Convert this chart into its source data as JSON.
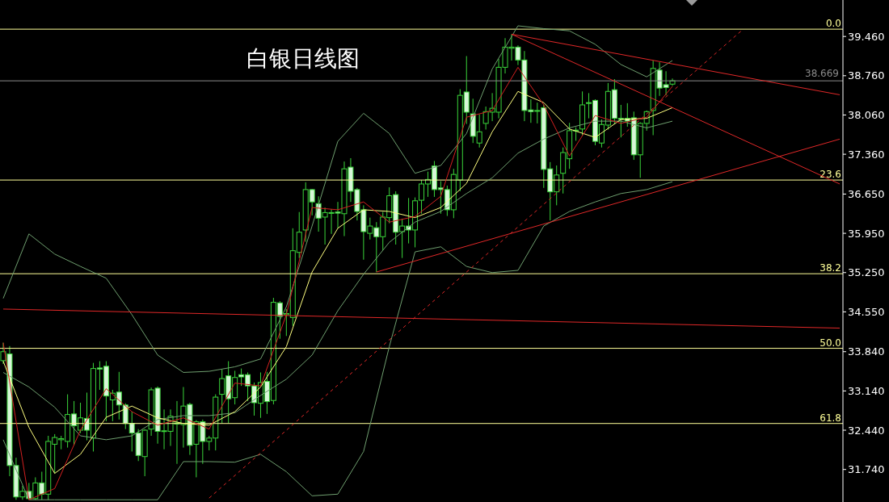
{
  "chart_data": {
    "type": "candlestick",
    "title": "白银日线图",
    "categories": [
      null,
      null,
      null,
      null,
      null,
      null,
      null,
      null,
      null,
      null,
      null,
      null,
      null,
      null,
      null,
      null,
      null,
      null,
      null,
      null,
      null,
      null,
      null,
      null,
      null,
      null,
      null,
      null,
      null,
      null,
      null,
      null,
      null,
      null,
      null,
      null,
      null,
      null,
      null,
      null,
      null,
      null,
      null,
      null,
      null,
      null,
      null,
      null,
      null,
      null,
      null,
      null,
      null,
      null,
      null,
      null,
      null,
      null,
      null,
      null,
      null,
      null,
      null,
      null,
      null,
      null,
      null,
      null,
      null,
      null,
      null,
      null,
      null,
      null,
      null,
      null,
      null,
      null,
      null,
      null,
      null,
      null,
      null,
      null,
      null,
      null,
      null,
      null,
      null,
      null,
      null,
      null,
      null,
      null,
      null,
      null,
      null,
      null,
      null,
      null,
      null,
      null,
      null,
      null,
      null,
      null,
      null,
      null,
      null,
      null,
      null,
      null,
      null,
      null,
      null,
      null,
      null,
      null,
      null,
      null,
      null,
      null,
      null,
      null,
      null,
      null,
      null,
      null,
      null,
      null,
      null
    ],
    "ylim": [
      31.16,
      40.11
    ],
    "yticks": [
      {
        "value": 31.74,
        "label": "31.740"
      },
      {
        "value": 32.44,
        "label": "32.440"
      },
      {
        "value": 33.14,
        "label": "33.140"
      },
      {
        "value": 33.84,
        "label": "33.840"
      },
      {
        "value": 34.55,
        "label": "34.550"
      },
      {
        "value": 35.25,
        "label": "35.250"
      },
      {
        "value": 35.95,
        "label": "35.950"
      },
      {
        "value": 36.65,
        "label": "36.650"
      },
      {
        "value": 37.36,
        "label": "37.360"
      },
      {
        "value": 38.06,
        "label": "38.060"
      },
      {
        "value": 38.76,
        "label": "38.760"
      },
      {
        "value": 39.46,
        "label": "39.460"
      }
    ],
    "tick_labels": "y",
    "annotations": [
      {
        "text": "0.0",
        "y": 39.59
      },
      {
        "text": "23.6",
        "y": 36.9
      },
      {
        "text": "38.2",
        "y": 35.23
      },
      {
        "text": "50.0",
        "y": 33.9
      },
      {
        "text": "61.8",
        "y": 32.56
      }
    ],
    "ref_lines": [
      {
        "axis": "y",
        "value": 39.59,
        "color": "#ffff99"
      },
      {
        "axis": "y",
        "value": 36.9,
        "color": "#ffff99"
      },
      {
        "axis": "y",
        "value": 35.23,
        "color": "#ffff99"
      },
      {
        "axis": "y",
        "value": 33.9,
        "color": "#ffff99"
      },
      {
        "axis": "y",
        "value": 32.56,
        "color": "#ffff99"
      },
      {
        "axis": "y",
        "value": 38.669,
        "label": "38.669",
        "color": "#8a8a8a"
      }
    ],
    "series": [
      {
        "type": "line",
        "color": "#6f9f6f",
        "values": [
          34.79,
          null,
          null,
          null,
          35.94,
          null,
          null,
          null,
          35.58,
          null,
          null,
          null,
          35.36,
          null,
          null,
          null,
          35.15,
          null,
          null,
          null,
          34.5,
          null,
          null,
          null,
          33.78,
          null,
          null,
          null,
          33.47,
          null,
          null,
          null,
          33.49,
          null,
          null,
          null,
          33.57,
          null,
          null,
          null,
          33.71,
          null,
          null,
          null,
          34.64,
          null,
          null,
          null,
          36.08,
          null,
          null,
          null,
          37.59,
          null,
          null,
          null,
          38.09,
          null,
          null,
          null,
          37.73,
          null,
          null,
          null,
          37.02,
          null,
          null,
          null,
          37.16,
          null,
          null,
          null,
          37.73,
          null,
          null,
          null,
          38.88,
          null,
          null,
          null,
          39.65,
          null,
          null,
          null,
          39.6,
          null,
          null,
          null,
          39.56,
          null,
          null,
          null,
          39.32,
          null,
          null,
          null,
          38.96,
          null,
          null,
          null,
          38.74,
          null,
          null,
          null,
          39.03,
          null,
          null,
          null,
          null,
          null,
          null,
          null,
          null,
          null,
          null,
          null,
          null,
          null,
          null,
          null,
          null,
          null,
          null,
          null,
          null,
          null,
          null,
          null,
          null,
          null,
          null
        ]
      },
      {
        "type": "line",
        "color": "#6f9f6f",
        "values": [
          33.47,
          null,
          null,
          null,
          33.21,
          null,
          null,
          null,
          32.85,
          null,
          null,
          null,
          32.34,
          null,
          null,
          null,
          32.27,
          null,
          null,
          null,
          32.34,
          null,
          null,
          null,
          32.63,
          null,
          null,
          null,
          32.7,
          null,
          null,
          null,
          32.7,
          null,
          null,
          null,
          32.75,
          null,
          null,
          null,
          33.06,
          null,
          null,
          null,
          33.35,
          null,
          null,
          null,
          33.78,
          null,
          null,
          null,
          34.57,
          null,
          null,
          null,
          35.22,
          null,
          null,
          null,
          35.79,
          null,
          null,
          null,
          36.15,
          null,
          null,
          null,
          36.34,
          null,
          null,
          null,
          36.66,
          null,
          null,
          null,
          36.94,
          null,
          null,
          null,
          37.38,
          null,
          null,
          null,
          37.63,
          null,
          null,
          null,
          37.83,
          null,
          null,
          null,
          37.95,
          null,
          null,
          null,
          37.95,
          null,
          null,
          null,
          37.83,
          null,
          null,
          null,
          37.95,
          null,
          null,
          null,
          null,
          null,
          null,
          null,
          null,
          null,
          null,
          null,
          null,
          null,
          null,
          null,
          null,
          null,
          null,
          null,
          null,
          null,
          null,
          null,
          null,
          null,
          null
        ]
      },
      {
        "type": "line",
        "color": "#6f9f6f",
        "values": [
          32.27,
          null,
          null,
          null,
          31.2,
          null,
          null,
          null,
          31.2,
          null,
          null,
          null,
          31.2,
          null,
          null,
          null,
          31.2,
          null,
          null,
          null,
          31.2,
          null,
          null,
          null,
          31.2,
          null,
          null,
          null,
          31.88,
          null,
          null,
          null,
          31.88,
          null,
          null,
          null,
          31.87,
          null,
          null,
          null,
          32.01,
          null,
          null,
          null,
          31.7,
          null,
          null,
          null,
          31.27,
          null,
          null,
          null,
          31.3,
          null,
          null,
          null,
          32.06,
          null,
          null,
          null,
          33.93,
          null,
          null,
          null,
          35.62,
          null,
          null,
          null,
          35.71,
          null,
          null,
          null,
          35.36,
          null,
          null,
          null,
          35.25,
          null,
          null,
          null,
          35.29,
          null,
          null,
          null,
          36.08,
          null,
          null,
          null,
          36.34,
          null,
          null,
          null,
          36.51,
          null,
          null,
          null,
          36.66,
          null,
          null,
          null,
          36.73,
          null,
          null,
          null,
          36.87,
          null,
          null,
          null,
          null,
          null,
          null,
          null,
          null,
          null,
          null,
          null,
          null,
          null,
          null,
          null,
          null,
          null,
          null,
          null,
          null,
          null,
          null,
          null,
          null,
          null,
          null
        ]
      },
      {
        "type": "line",
        "color": "#ffff80",
        "values": [
          33.67,
          null,
          null,
          null,
          32.49,
          null,
          null,
          null,
          31.67,
          null,
          null,
          null,
          32.01,
          null,
          null,
          null,
          32.67,
          null,
          null,
          null,
          32.87,
          null,
          null,
          null,
          32.66,
          null,
          null,
          null,
          32.56,
          null,
          null,
          null,
          32.53,
          null,
          null,
          null,
          32.77,
          null,
          null,
          null,
          33.21,
          null,
          null,
          null,
          33.93,
          null,
          null,
          null,
          35.26,
          null,
          null,
          null,
          36.04,
          null,
          null,
          null,
          36.37,
          null,
          null,
          null,
          36.34,
          null,
          null,
          null,
          36.23,
          null,
          null,
          null,
          36.41,
          null,
          null,
          null,
          36.84,
          null,
          null,
          null,
          37.76,
          null,
          null,
          null,
          38.48,
          null,
          null,
          null,
          38.28,
          null,
          null,
          null,
          37.81,
          null,
          null,
          null,
          37.66,
          null,
          null,
          null,
          37.98,
          null,
          null,
          null,
          38.0,
          null,
          null,
          null,
          38.19,
          null,
          null,
          null,
          null,
          null,
          null,
          null,
          null,
          null,
          null,
          null,
          null,
          null,
          null,
          null,
          null,
          null,
          null,
          null,
          null,
          null,
          null,
          null,
          null,
          null,
          null
        ]
      },
      {
        "type": "line",
        "color": "#d42020",
        "values": [
          34.0,
          null,
          null,
          null,
          31.2,
          null,
          null,
          null,
          31.4,
          null,
          null,
          null,
          32.44,
          null,
          null,
          null,
          33.18,
          null,
          null,
          null,
          32.77,
          null,
          null,
          null,
          32.53,
          null,
          null,
          null,
          32.66,
          null,
          null,
          null,
          32.46,
          null,
          null,
          null,
          33.28,
          null,
          null,
          null,
          33.23,
          null,
          null,
          null,
          34.5,
          null,
          null,
          null,
          36.41,
          null,
          null,
          null,
          36.37,
          null,
          null,
          null,
          36.51,
          null,
          null,
          null,
          36.15,
          null,
          null,
          null,
          36.25,
          null,
          null,
          null,
          36.61,
          null,
          null,
          null,
          38.02,
          null,
          null,
          null,
          38.14,
          null,
          null,
          null,
          38.91,
          null,
          null,
          null,
          38.24,
          null,
          null,
          null,
          37.33,
          null,
          null,
          null,
          38.05,
          null,
          null,
          null,
          37.91,
          null,
          null,
          null,
          38.02,
          null,
          null,
          null,
          38.57,
          null,
          null,
          null,
          null,
          null,
          null,
          null,
          null,
          null,
          null,
          null,
          null,
          null,
          null,
          null,
          null,
          null,
          null,
          null,
          null,
          null,
          null,
          null,
          null,
          null,
          null
        ]
      },
      {
        "type": "line",
        "color": "#e02828",
        "values": [
          null,
          null,
          null,
          null,
          null,
          null,
          null,
          null,
          null,
          null,
          null,
          null,
          null,
          null,
          null,
          null,
          null,
          null,
          null,
          null,
          null,
          null,
          null,
          null,
          null,
          null,
          null,
          null,
          null,
          null,
          null,
          null,
          null,
          null,
          null,
          null,
          null,
          null,
          null,
          null,
          null,
          null,
          null,
          null,
          null,
          null,
          null,
          null,
          null,
          null,
          null,
          null,
          null,
          null,
          null,
          null,
          null,
          null,
          null,
          null,
          null,
          null,
          null,
          null,
          null,
          null,
          null,
          null,
          null,
          null,
          null,
          null,
          null,
          null,
          null,
          null,
          null,
          null,
          null,
          39.5,
          null,
          null,
          null,
          null,
          null,
          null,
          null,
          null,
          null,
          null,
          null,
          null,
          null,
          null,
          null,
          null,
          null,
          null,
          null,
          null,
          null,
          null,
          null,
          null,
          null,
          null,
          null,
          null,
          null,
          null,
          null,
          null,
          null,
          null,
          null,
          null,
          null,
          null,
          null,
          null,
          null,
          null,
          null,
          null,
          null,
          null,
          null,
          null,
          null,
          null,
          38.42
        ]
      },
      {
        "type": "line",
        "color": "#e02828",
        "values": [
          null,
          null,
          null,
          null,
          null,
          null,
          null,
          null,
          null,
          null,
          null,
          null,
          null,
          null,
          null,
          null,
          null,
          null,
          null,
          null,
          null,
          null,
          null,
          null,
          null,
          null,
          null,
          null,
          null,
          null,
          null,
          null,
          null,
          null,
          null,
          null,
          null,
          null,
          null,
          null,
          null,
          null,
          null,
          null,
          null,
          null,
          null,
          null,
          null,
          null,
          null,
          null,
          null,
          null,
          null,
          null,
          null,
          null,
          null,
          null,
          null,
          null,
          null,
          null,
          null,
          null,
          null,
          null,
          null,
          null,
          null,
          null,
          null,
          null,
          null,
          null,
          null,
          null,
          null,
          39.5,
          null,
          null,
          null,
          null,
          null,
          null,
          null,
          null,
          null,
          null,
          null,
          null,
          null,
          null,
          null,
          null,
          null,
          null,
          null,
          null,
          null,
          null,
          null,
          null,
          null,
          null,
          null,
          null,
          null,
          null,
          null,
          null,
          null,
          null,
          null,
          null,
          null,
          null,
          null,
          null,
          null,
          null,
          null,
          null,
          null,
          null,
          null,
          null,
          null,
          null,
          36.83
        ]
      },
      {
        "type": "line",
        "color": "#e02828",
        "values": [
          null,
          null,
          null,
          null,
          null,
          null,
          null,
          null,
          null,
          null,
          null,
          null,
          null,
          null,
          null,
          null,
          null,
          null,
          null,
          null,
          null,
          null,
          null,
          null,
          null,
          null,
          null,
          null,
          null,
          null,
          null,
          null,
          null,
          null,
          null,
          null,
          null,
          null,
          null,
          null,
          null,
          null,
          null,
          null,
          null,
          null,
          null,
          null,
          null,
          null,
          null,
          null,
          null,
          null,
          null,
          null,
          null,
          null,
          35.26,
          null,
          null,
          null,
          null,
          null,
          null,
          null,
          null,
          null,
          null,
          null,
          null,
          null,
          null,
          null,
          null,
          null,
          null,
          null,
          null,
          null,
          null,
          null,
          null,
          null,
          null,
          null,
          null,
          null,
          null,
          null,
          null,
          null,
          null,
          null,
          null,
          null,
          null,
          null,
          null,
          null,
          null,
          null,
          null,
          null,
          null,
          null,
          null,
          null,
          null,
          null,
          null,
          null,
          null,
          null,
          null,
          null,
          null,
          null,
          null,
          null,
          null,
          null,
          null,
          null,
          null,
          null,
          null,
          null,
          null,
          null,
          37.63
        ]
      },
      {
        "type": "line",
        "color": "#e02828",
        "values": [
          34.6,
          null,
          null,
          null,
          null,
          null,
          null,
          null,
          null,
          null,
          null,
          null,
          null,
          null,
          null,
          null,
          null,
          null,
          null,
          null,
          null,
          null,
          null,
          null,
          null,
          null,
          null,
          null,
          null,
          null,
          null,
          null,
          null,
          null,
          null,
          null,
          null,
          null,
          null,
          null,
          null,
          null,
          null,
          null,
          null,
          null,
          null,
          null,
          null,
          null,
          null,
          null,
          null,
          null,
          null,
          null,
          null,
          null,
          null,
          null,
          null,
          null,
          null,
          null,
          null,
          null,
          null,
          null,
          null,
          null,
          null,
          null,
          null,
          null,
          null,
          null,
          null,
          null,
          null,
          null,
          null,
          null,
          null,
          null,
          null,
          null,
          null,
          null,
          null,
          null,
          null,
          null,
          null,
          null,
          null,
          null,
          null,
          null,
          null,
          null,
          null,
          null,
          null,
          null,
          null,
          null,
          null,
          null,
          null,
          null,
          null,
          null,
          null,
          null,
          null,
          null,
          null,
          null,
          null,
          null,
          null,
          null,
          null,
          null,
          null,
          null,
          null,
          null,
          null,
          null,
          34.26
        ]
      },
      {
        "type": "line",
        "color": "#e02828",
        "line_style": "dashed",
        "values": [
          null,
          null,
          null,
          null,
          null,
          null,
          null,
          null,
          null,
          null,
          null,
          null,
          null,
          null,
          null,
          null,
          null,
          null,
          null,
          null,
          null,
          null,
          null,
          null,
          null,
          null,
          null,
          null,
          null,
          null,
          null,
          null,
          31.23,
          null,
          null,
          null,
          null,
          null,
          null,
          null,
          null,
          null,
          null,
          null,
          null,
          null,
          null,
          null,
          null,
          null,
          null,
          null,
          null,
          null,
          null,
          null,
          null,
          null,
          null,
          null,
          null,
          null,
          null,
          null,
          null,
          null,
          null,
          null,
          null,
          null,
          null,
          null,
          null,
          null,
          null,
          null,
          null,
          null,
          null,
          null,
          null,
          null,
          null,
          null,
          null,
          null,
          null,
          null,
          null,
          null,
          null,
          null,
          null,
          null,
          null,
          null,
          null,
          null,
          null,
          null,
          null,
          null,
          null,
          null,
          null,
          null,
          null,
          null,
          null,
          null,
          null,
          null,
          null,
          null,
          null,
          39.59,
          null,
          null,
          null,
          null,
          null,
          null,
          null,
          null,
          null,
          null,
          null,
          null,
          null,
          null,
          null
        ]
      },
      {
        "type": "candlestick",
        "color": "#3ad43a",
        "ohlc": [
          [
            33.68,
            34.0,
            33.62,
            33.84
          ],
          [
            33.8,
            33.94,
            31.62,
            31.81
          ],
          [
            31.81,
            31.95,
            31.2,
            31.25
          ],
          [
            31.25,
            31.45,
            31.2,
            31.35
          ],
          [
            31.35,
            31.5,
            31.2,
            31.22
          ],
          [
            31.22,
            31.6,
            31.2,
            31.5
          ],
          [
            31.5,
            31.7,
            31.2,
            31.3
          ],
          [
            31.3,
            32.34,
            31.2,
            32.24
          ],
          [
            32.19,
            32.37,
            31.67,
            32.31
          ],
          [
            32.27,
            32.34,
            32.1,
            32.29
          ],
          [
            32.24,
            33.08,
            32.13,
            32.72
          ],
          [
            32.73,
            32.96,
            32.17,
            32.52
          ],
          [
            32.44,
            32.93,
            32.39,
            32.66
          ],
          [
            32.65,
            33.11,
            32.26,
            32.44
          ],
          [
            32.3,
            33.64,
            32.06,
            33.54
          ],
          [
            33.55,
            33.67,
            33.16,
            33.53
          ],
          [
            33.58,
            33.67,
            32.6,
            33.05
          ],
          [
            32.98,
            33.16,
            32.6,
            33.1
          ],
          [
            33.12,
            33.48,
            32.63,
            32.89
          ],
          [
            32.89,
            32.92,
            32.46,
            32.56
          ],
          [
            32.56,
            32.77,
            32.06,
            32.39
          ],
          [
            32.39,
            32.46,
            31.89,
            31.99
          ],
          [
            31.97,
            32.46,
            31.62,
            32.44
          ],
          [
            32.46,
            33.2,
            32.34,
            33.16
          ],
          [
            33.19,
            33.22,
            32.2,
            32.42
          ],
          [
            32.42,
            32.81,
            32.1,
            32.43
          ],
          [
            32.42,
            32.81,
            32.16,
            32.69
          ],
          [
            32.55,
            32.96,
            31.84,
            32.57
          ],
          [
            32.54,
            33.21,
            32.13,
            32.87
          ],
          [
            32.9,
            32.93,
            32.0,
            32.17
          ],
          [
            32.19,
            32.62,
            31.6,
            32.59
          ],
          [
            32.59,
            32.63,
            31.84,
            32.24
          ],
          [
            32.24,
            32.34,
            32.08,
            32.3
          ],
          [
            32.3,
            33.08,
            32.08,
            33.03
          ],
          [
            33.08,
            33.52,
            32.56,
            33.36
          ],
          [
            33.41,
            33.67,
            32.56,
            33.0
          ],
          [
            33.02,
            33.5,
            32.9,
            33.38
          ],
          [
            33.43,
            33.54,
            33.23,
            33.39
          ],
          [
            33.43,
            33.47,
            32.96,
            33.23
          ],
          [
            33.23,
            33.29,
            32.7,
            32.93
          ],
          [
            32.92,
            33.47,
            32.66,
            33.29
          ],
          [
            33.31,
            33.48,
            32.73,
            32.95
          ],
          [
            32.97,
            34.8,
            32.9,
            34.72
          ],
          [
            34.71,
            34.74,
            34.07,
            34.47
          ],
          [
            34.5,
            34.6,
            34.12,
            34.52
          ],
          [
            34.45,
            36.04,
            34.3,
            35.64
          ],
          [
            35.61,
            36.33,
            35.51,
            35.97
          ],
          [
            36.01,
            36.86,
            35.8,
            36.73
          ],
          [
            36.73,
            36.74,
            36.27,
            36.51
          ],
          [
            36.48,
            36.61,
            35.98,
            36.22
          ],
          [
            36.24,
            36.41,
            35.75,
            36.32
          ],
          [
            36.31,
            36.38,
            35.94,
            36.32
          ],
          [
            36.33,
            36.51,
            36.04,
            36.31
          ],
          [
            36.3,
            37.23,
            35.9,
            37.1
          ],
          [
            37.13,
            37.29,
            36.51,
            36.7
          ],
          [
            36.73,
            36.76,
            36.18,
            36.34
          ],
          [
            36.37,
            36.45,
            35.48,
            35.98
          ],
          [
            35.95,
            36.23,
            35.84,
            36.08
          ],
          [
            36.05,
            36.15,
            35.26,
            35.89
          ],
          [
            35.89,
            36.33,
            35.65,
            36.24
          ],
          [
            36.23,
            36.77,
            36.13,
            36.62
          ],
          [
            36.64,
            36.7,
            35.75,
            35.97
          ],
          [
            35.98,
            36.21,
            35.51,
            36.08
          ],
          [
            36.08,
            36.58,
            35.77,
            36.01
          ],
          [
            36.01,
            36.59,
            35.7,
            36.53
          ],
          [
            36.54,
            36.9,
            36.3,
            36.83
          ],
          [
            36.83,
            37.05,
            36.6,
            36.91
          ],
          [
            37.15,
            37.24,
            36.6,
            36.73
          ],
          [
            36.76,
            36.88,
            36.3,
            36.73
          ],
          [
            36.73,
            36.8,
            36.26,
            36.37
          ],
          [
            36.37,
            37.1,
            36.22,
            37.0
          ],
          [
            36.9,
            38.52,
            36.7,
            38.41
          ],
          [
            38.47,
            39.11,
            37.9,
            38.11
          ],
          [
            38.08,
            38.35,
            37.56,
            37.68
          ],
          [
            37.56,
            38.07,
            37.48,
            37.76
          ],
          [
            37.91,
            38.21,
            37.8,
            38.12
          ],
          [
            38.11,
            38.45,
            37.95,
            38.18
          ],
          [
            38.11,
            39.06,
            38.0,
            38.91
          ],
          [
            38.91,
            39.43,
            38.8,
            39.27
          ],
          [
            39.25,
            39.5,
            39.03,
            39.27
          ],
          [
            39.27,
            39.3,
            38.95,
            39.04
          ],
          [
            39.04,
            39.2,
            37.95,
            38.14
          ],
          [
            38.15,
            38.34,
            37.92,
            38.12
          ],
          [
            38.14,
            38.28,
            37.91,
            38.14
          ],
          [
            38.19,
            38.24,
            36.76,
            37.09
          ],
          [
            37.1,
            37.22,
            36.18,
            36.69
          ],
          [
            36.69,
            37.16,
            36.45,
            36.99
          ],
          [
            37.02,
            37.48,
            36.66,
            37.39
          ],
          [
            37.28,
            37.92,
            37.1,
            37.78
          ],
          [
            37.79,
            37.84,
            37.6,
            37.79
          ],
          [
            37.81,
            38.48,
            37.7,
            38.24
          ],
          [
            38.28,
            38.45,
            38.0,
            38.28
          ],
          [
            38.32,
            38.34,
            37.52,
            37.59
          ],
          [
            37.56,
            37.98,
            37.48,
            37.89
          ],
          [
            37.88,
            38.63,
            37.8,
            38.48
          ],
          [
            38.51,
            38.7,
            37.9,
            38.0
          ],
          [
            38.0,
            38.24,
            37.66,
            37.98
          ],
          [
            38.0,
            38.27,
            37.85,
            37.95
          ],
          [
            38.01,
            38.12,
            37.26,
            37.35
          ],
          [
            37.35,
            37.93,
            36.94,
            37.91
          ],
          [
            37.91,
            38.14,
            37.78,
            38.12
          ],
          [
            38.14,
            39.03,
            37.7,
            38.89
          ],
          [
            38.86,
            39.0,
            38.4,
            38.54
          ],
          [
            38.6,
            38.84,
            38.41,
            38.55
          ],
          [
            38.61,
            38.71,
            38.58,
            38.669
          ],
          null,
          null,
          null,
          null,
          null,
          null,
          null,
          null,
          null,
          null,
          null,
          null,
          null,
          null,
          null,
          null,
          null,
          null,
          null,
          null,
          null,
          null,
          null,
          null,
          null,
          null
        ]
      }
    ]
  }
}
